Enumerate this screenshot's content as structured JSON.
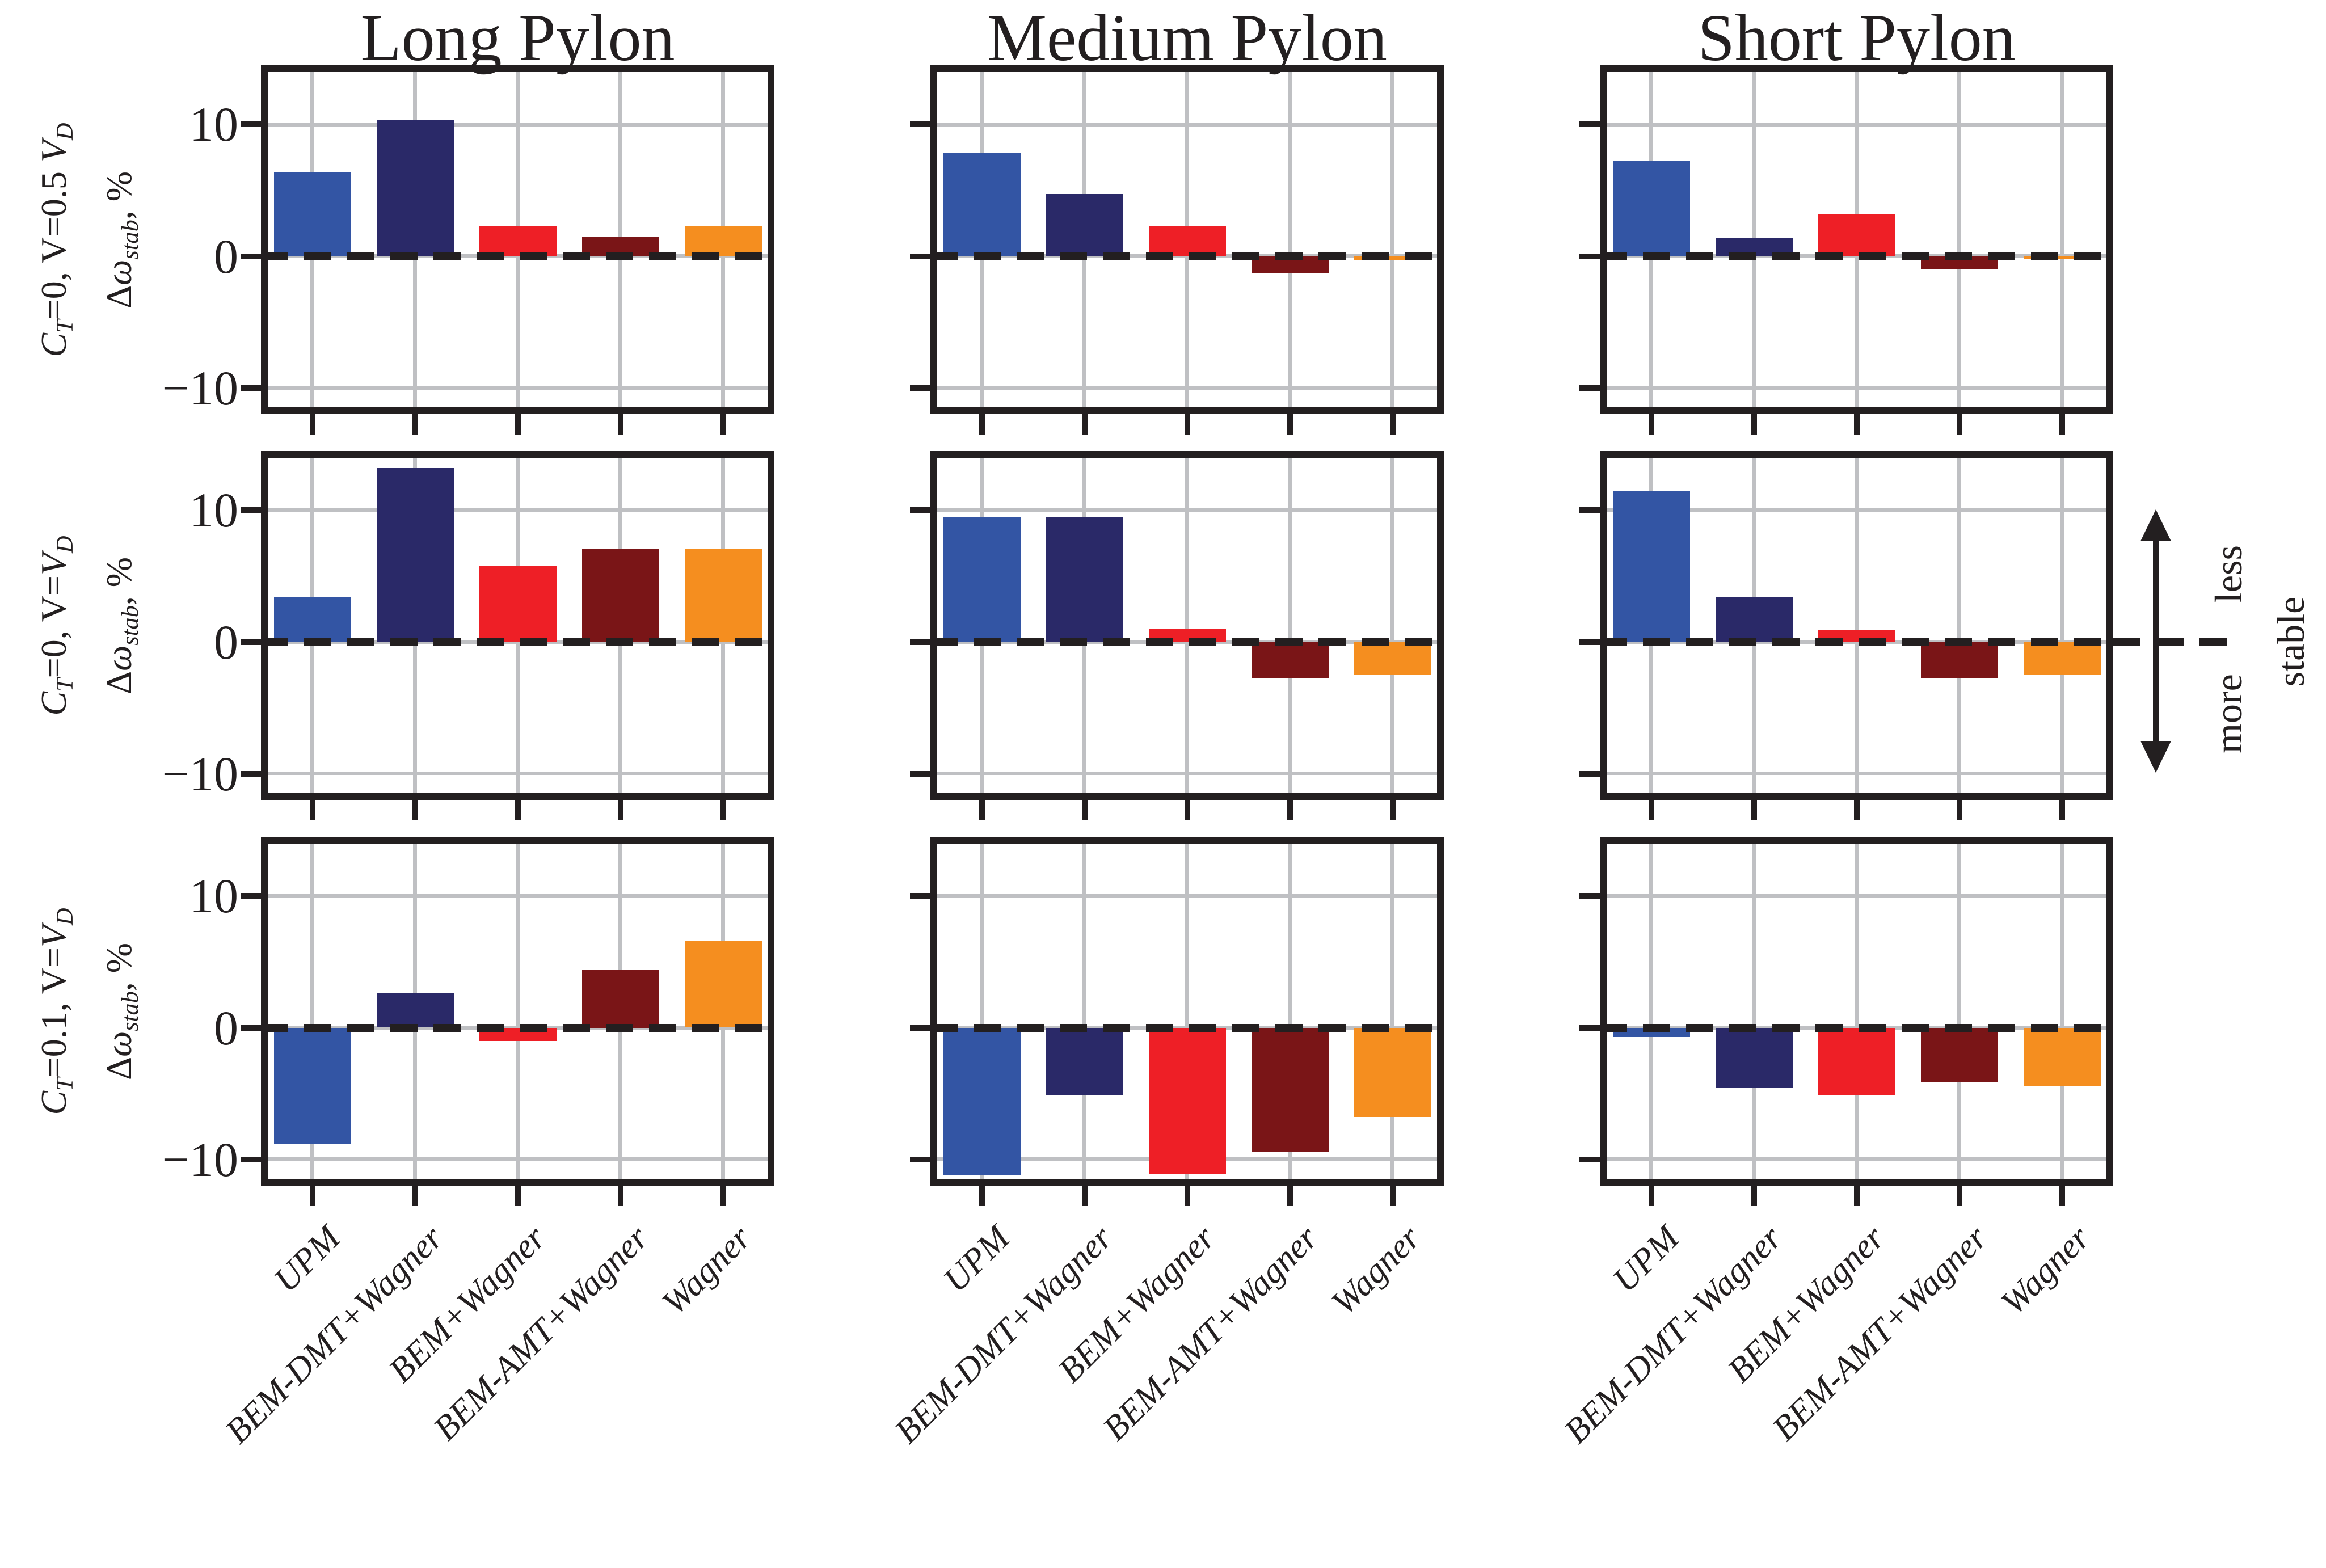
{
  "colors": {
    "axis": "#231F20",
    "grid": "#BFC0C3",
    "background": "#ffffff"
  },
  "bar_colors": {
    "UPM": "#3355A4",
    "BEM-DMT+Wagner": "#2A2968",
    "BEM+Wagner": "#EE1F26",
    "BEM-AMT+Wagner": "#7A1517",
    "Wagner": "#F58E1F"
  },
  "columns": [
    {
      "title": "Long Pylon"
    },
    {
      "title": "Medium Pylon"
    },
    {
      "title": "Short Pylon"
    }
  ],
  "rows": [
    {
      "ylabel_line1": "*C*_{T}=0, V=0.5 *V*_{D}",
      "ylabel_line2": "Δ*ω*_{stab}, %"
    },
    {
      "ylabel_line1": "*C*_{T}=0, V=*V*_{D}",
      "ylabel_line2": "Δ*ω*_{stab}, %"
    },
    {
      "ylabel_line1": "*C*_{T}=0.1, V=*V*_{D}",
      "ylabel_line2": "Δ*ω*_{stab}, %"
    }
  ],
  "y_ticks": [
    {
      "label": "10",
      "value": 10
    },
    {
      "label": "0",
      "value": 0
    },
    {
      "label": "−10",
      "value": -10
    }
  ],
  "categories": [
    "UPM",
    "BEM-DMT+Wagner",
    "BEM+Wagner",
    "BEM-AMT+Wagner",
    "Wagner"
  ],
  "annotation": {
    "less": "less",
    "more": "more",
    "stable": "stable"
  },
  "chart_data": [
    {
      "type": "bar",
      "pylon": "Long Pylon",
      "condition": "C_T=0, V=0.5 V_D",
      "ylabel": "Δω_stab, %",
      "categories": [
        "UPM",
        "BEM-DMT+Wagner",
        "BEM+Wagner",
        "BEM-AMT+Wagner",
        "Wagner"
      ],
      "values": [
        6.4,
        10.3,
        2.3,
        1.5,
        2.3
      ],
      "ylim": [
        -12,
        14.5
      ],
      "ygrid": [
        10,
        0,
        -10
      ],
      "zero_line_style": "dashed"
    },
    {
      "type": "bar",
      "pylon": "Medium Pylon",
      "condition": "C_T=0, V=0.5 V_D",
      "ylabel": "Δω_stab, %",
      "categories": [
        "UPM",
        "BEM-DMT+Wagner",
        "BEM+Wagner",
        "BEM-AMT+Wagner",
        "Wagner"
      ],
      "values": [
        7.8,
        4.7,
        2.3,
        -1.3,
        -0.3
      ],
      "ylim": [
        -12,
        14.5
      ],
      "ygrid": [
        10,
        0,
        -10
      ],
      "zero_line_style": "dashed"
    },
    {
      "type": "bar",
      "pylon": "Short Pylon",
      "condition": "C_T=0, V=0.5 V_D",
      "ylabel": "Δω_stab, %",
      "categories": [
        "UPM",
        "BEM-DMT+Wagner",
        "BEM+Wagner",
        "BEM-AMT+Wagner",
        "Wagner"
      ],
      "values": [
        7.2,
        1.4,
        3.2,
        -1.0,
        -0.2
      ],
      "ylim": [
        -12,
        14.5
      ],
      "ygrid": [
        10,
        0,
        -10
      ],
      "zero_line_style": "dashed"
    },
    {
      "type": "bar",
      "pylon": "Long Pylon",
      "condition": "C_T=0, V=V_D",
      "ylabel": "Δω_stab, %",
      "categories": [
        "UPM",
        "BEM-DMT+Wagner",
        "BEM+Wagner",
        "BEM-AMT+Wagner",
        "Wagner"
      ],
      "values": [
        3.4,
        13.2,
        5.8,
        7.1,
        7.1
      ],
      "ylim": [
        -12,
        14.5
      ],
      "ygrid": [
        10,
        0,
        -10
      ],
      "zero_line_style": "dashed"
    },
    {
      "type": "bar",
      "pylon": "Medium Pylon",
      "condition": "C_T=0, V=V_D",
      "ylabel": "Δω_stab, %",
      "categories": [
        "UPM",
        "BEM-DMT+Wagner",
        "BEM+Wagner",
        "BEM-AMT+Wagner",
        "Wagner"
      ],
      "values": [
        9.5,
        9.5,
        1.0,
        -2.8,
        -2.5
      ],
      "ylim": [
        -12,
        14.5
      ],
      "ygrid": [
        10,
        0,
        -10
      ],
      "zero_line_style": "dashed"
    },
    {
      "type": "bar",
      "pylon": "Short Pylon",
      "condition": "C_T=0, V=V_D",
      "ylabel": "Δω_stab, %",
      "categories": [
        "UPM",
        "BEM-DMT+Wagner",
        "BEM+Wagner",
        "BEM-AMT+Wagner",
        "Wagner"
      ],
      "values": [
        11.5,
        3.4,
        0.9,
        -2.8,
        -2.5
      ],
      "ylim": [
        -12,
        14.5
      ],
      "ygrid": [
        10,
        0,
        -10
      ],
      "zero_line_style": "dashed"
    },
    {
      "type": "bar",
      "pylon": "Long Pylon",
      "condition": "C_T=0.1, V=V_D",
      "ylabel": "Δω_stab, %",
      "categories": [
        "UPM",
        "BEM-DMT+Wagner",
        "BEM+Wagner",
        "BEM-AMT+Wagner",
        "Wagner"
      ],
      "values": [
        -8.8,
        2.6,
        -1.0,
        4.4,
        6.6
      ],
      "ylim": [
        -12,
        14.5
      ],
      "ygrid": [
        10,
        0,
        -10
      ],
      "zero_line_style": "dashed"
    },
    {
      "type": "bar",
      "pylon": "Medium Pylon",
      "condition": "C_T=0.1, V=V_D",
      "ylabel": "Δω_stab, %",
      "categories": [
        "UPM",
        "BEM-DMT+Wagner",
        "BEM+Wagner",
        "BEM-AMT+Wagner",
        "Wagner"
      ],
      "values": [
        -11.2,
        -5.1,
        -11.1,
        -9.4,
        -6.8
      ],
      "ylim": [
        -12,
        14.5
      ],
      "ygrid": [
        10,
        0,
        -10
      ],
      "zero_line_style": "dashed"
    },
    {
      "type": "bar",
      "pylon": "Short Pylon",
      "condition": "C_T=0.1, V=V_D",
      "ylabel": "Δω_stab, %",
      "categories": [
        "UPM",
        "BEM-DMT+Wagner",
        "BEM+Wagner",
        "BEM-AMT+Wagner",
        "Wagner"
      ],
      "values": [
        -0.7,
        -4.6,
        -5.1,
        -4.1,
        -4.4
      ],
      "ylim": [
        -12,
        14.5
      ],
      "ygrid": [
        10,
        0,
        -10
      ],
      "zero_line_style": "dashed"
    }
  ]
}
